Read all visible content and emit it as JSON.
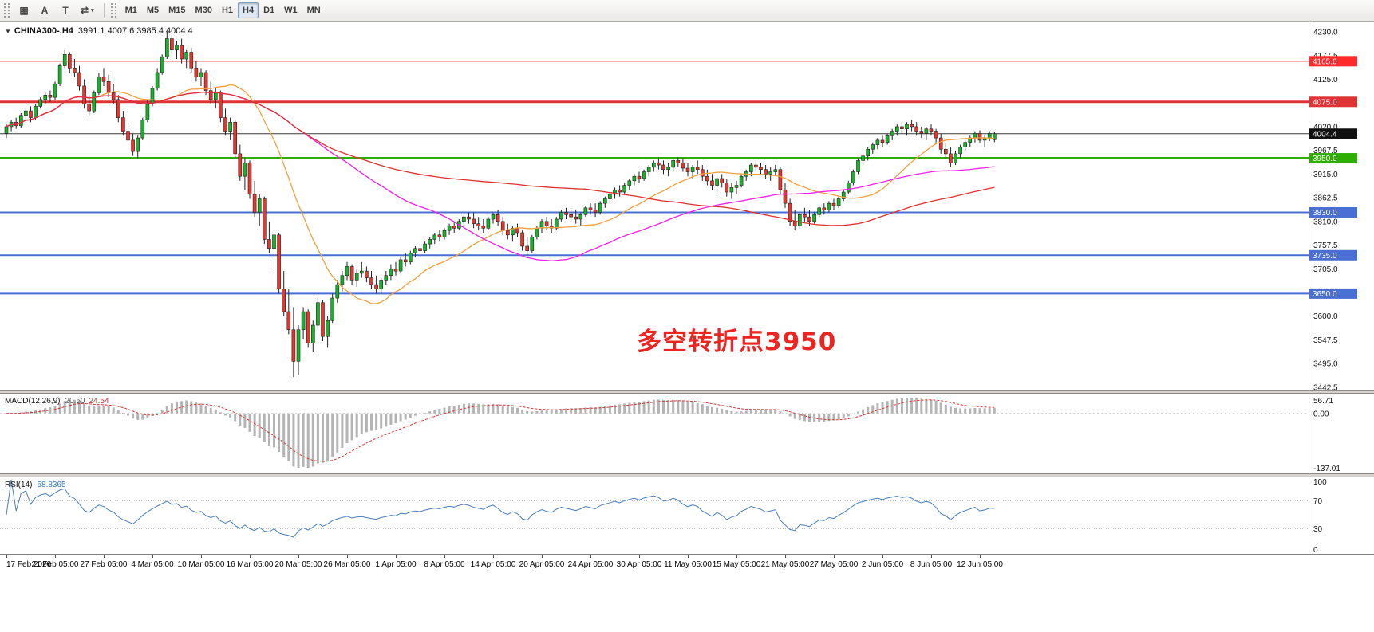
{
  "toolbar": {
    "icons": [
      {
        "name": "charts-grid-icon",
        "glyph": "▦"
      },
      {
        "name": "cursor-tool-icon",
        "glyph": "A"
      },
      {
        "name": "text-tool-icon",
        "glyph": "T"
      },
      {
        "name": "chart-shift-icon",
        "glyph": "⇄",
        "caret": true
      }
    ],
    "timeframes": [
      "M1",
      "M5",
      "M15",
      "M30",
      "H1",
      "H4",
      "D1",
      "W1",
      "MN"
    ],
    "active_timeframe": "H4"
  },
  "chart": {
    "collapse_icon": "▼",
    "title_symbol": "CHINA300-,H4",
    "title_ohlc": "3991.1 4007.6 3985.4 4004.4",
    "annotation": {
      "text": "多空转折点3950",
      "color": "#ee2420"
    }
  },
  "chart_data": {
    "type": "candlestick",
    "symbol": "CHINA300-",
    "timeframe": "H4",
    "colors": {
      "up": "#17b32a",
      "down": "#e8352e",
      "wick": "#222222",
      "current_price_line": "#3c3c3c"
    },
    "y_axis": {
      "min": 3442.5,
      "max": 4230.0,
      "step": 52.5
    },
    "levels": [
      {
        "price": 4165.0,
        "label": "4165.0",
        "color": "#ff2a2a",
        "width": 1
      },
      {
        "price": 4075.0,
        "label": "4075.0",
        "color": "#e03434",
        "width": 3
      },
      {
        "price": 3950.0,
        "label": "3950.0",
        "color": "#2eae00",
        "width": 3
      },
      {
        "price": 3830.0,
        "label": "3830.0",
        "color": "#4a6fd4",
        "width": 2
      },
      {
        "price": 3735.0,
        "label": "3735.0",
        "color": "#4a6fd4",
        "width": 2
      },
      {
        "price": 3650.0,
        "label": "3650.0",
        "color": "#4a6fd4",
        "width": 2
      }
    ],
    "current_price": {
      "value": 4004.4,
      "label": "4004.4",
      "badge_color": "#101010"
    },
    "moving_averages": [
      {
        "period": 20,
        "color": "#f2a13c"
      },
      {
        "period": 60,
        "color": "#f020e8"
      },
      {
        "period": 120,
        "color": "#e03030"
      }
    ],
    "indicators": {
      "macd": {
        "label": "MACD(12,26,9)",
        "value_hist": "20.50",
        "value_signal": "24.54",
        "fast": 12,
        "slow": 26,
        "signal": 9,
        "scale_labels": [
          "56.71",
          "0.00",
          "-137.01"
        ]
      },
      "rsi": {
        "label": "RSI(14)",
        "value": "58.8365",
        "period": 14,
        "levels": [
          70,
          30
        ],
        "scale_labels": [
          "100",
          "70",
          "30",
          "0"
        ],
        "scale_values": [
          100,
          70,
          30,
          0
        ]
      }
    },
    "x_labels": [
      "17 Feb 2020",
      "21 Feb 05:00",
      "27 Feb 05:00",
      "4 Mar 05:00",
      "10 Mar 05:00",
      "16 Mar 05:00",
      "20 Mar 05:00",
      "26 Mar 05:00",
      "1 Apr 05:00",
      "8 Apr 05:00",
      "14 Apr 05:00",
      "20 Apr 05:00",
      "24 Apr 05:00",
      "30 Apr 05:00",
      "11 May 05:00",
      "15 May 05:00",
      "21 May 05:00",
      "27 May 05:00",
      "2 Jun 05:00",
      "8 Jun 05:00",
      "12 Jun 05:00"
    ],
    "candles": [
      [
        4005,
        4025,
        3995,
        4020
      ],
      [
        4020,
        4035,
        4010,
        4030
      ],
      [
        4030,
        4040,
        4015,
        4022
      ],
      [
        4022,
        4050,
        4018,
        4045
      ],
      [
        4045,
        4060,
        4035,
        4055
      ],
      [
        4055,
        4065,
        4030,
        4040
      ],
      [
        4040,
        4070,
        4035,
        4065
      ],
      [
        4065,
        4085,
        4060,
        4080
      ],
      [
        4080,
        4095,
        4070,
        4090
      ],
      [
        4090,
        4100,
        4075,
        4085
      ],
      [
        4085,
        4120,
        4080,
        4115
      ],
      [
        4115,
        4160,
        4110,
        4155
      ],
      [
        4155,
        4190,
        4150,
        4180
      ],
      [
        4180,
        4185,
        4140,
        4150
      ],
      [
        4150,
        4170,
        4130,
        4140
      ],
      [
        4140,
        4155,
        4100,
        4110
      ],
      [
        4110,
        4125,
        4060,
        4070
      ],
      [
        4070,
        4090,
        4045,
        4055
      ],
      [
        4055,
        4100,
        4050,
        4095
      ],
      [
        4095,
        4140,
        4090,
        4130
      ],
      [
        4130,
        4150,
        4110,
        4120
      ],
      [
        4120,
        4135,
        4085,
        4095
      ],
      [
        4095,
        4115,
        4070,
        4080
      ],
      [
        4080,
        4090,
        4030,
        4040
      ],
      [
        4040,
        4055,
        4000,
        4010
      ],
      [
        4010,
        4025,
        3980,
        3990
      ],
      [
        3990,
        4005,
        3955,
        3965
      ],
      [
        3965,
        4000,
        3950,
        3995
      ],
      [
        3995,
        4040,
        3990,
        4035
      ],
      [
        4035,
        4080,
        4030,
        4070
      ],
      [
        4070,
        4110,
        4065,
        4105
      ],
      [
        4105,
        4150,
        4100,
        4140
      ],
      [
        4140,
        4180,
        4135,
        4175
      ],
      [
        4175,
        4230,
        4170,
        4215
      ],
      [
        4215,
        4225,
        4180,
        4190
      ],
      [
        4190,
        4210,
        4170,
        4200
      ],
      [
        4200,
        4215,
        4160,
        4170
      ],
      [
        4170,
        4190,
        4150,
        4185
      ],
      [
        4185,
        4195,
        4140,
        4150
      ],
      [
        4150,
        4165,
        4120,
        4130
      ],
      [
        4130,
        4150,
        4110,
        4140
      ],
      [
        4140,
        4145,
        4090,
        4100
      ],
      [
        4100,
        4120,
        4070,
        4080
      ],
      [
        4080,
        4105,
        4060,
        4095
      ],
      [
        4095,
        4100,
        4030,
        4040
      ],
      [
        4040,
        4060,
        4000,
        4010
      ],
      [
        4010,
        4040,
        3990,
        4030
      ],
      [
        4030,
        4035,
        3950,
        3960
      ],
      [
        3960,
        3980,
        3900,
        3910
      ],
      [
        3910,
        3950,
        3880,
        3940
      ],
      [
        3940,
        3945,
        3860,
        3870
      ],
      [
        3870,
        3900,
        3820,
        3830
      ],
      [
        3830,
        3870,
        3800,
        3860
      ],
      [
        3860,
        3865,
        3760,
        3770
      ],
      [
        3770,
        3810,
        3740,
        3750
      ],
      [
        3750,
        3790,
        3700,
        3780
      ],
      [
        3780,
        3785,
        3650,
        3660
      ],
      [
        3660,
        3700,
        3600,
        3610
      ],
      [
        3610,
        3660,
        3560,
        3570
      ],
      [
        3570,
        3620,
        3465,
        3500
      ],
      [
        3500,
        3580,
        3470,
        3570
      ],
      [
        3570,
        3620,
        3550,
        3610
      ],
      [
        3610,
        3615,
        3530,
        3540
      ],
      [
        3540,
        3590,
        3520,
        3580
      ],
      [
        3580,
        3640,
        3570,
        3630
      ],
      [
        3630,
        3635,
        3545,
        3555
      ],
      [
        3555,
        3600,
        3530,
        3590
      ],
      [
        3590,
        3650,
        3585,
        3640
      ],
      [
        3640,
        3680,
        3630,
        3670
      ],
      [
        3670,
        3700,
        3655,
        3690
      ],
      [
        3690,
        3720,
        3680,
        3710
      ],
      [
        3710,
        3715,
        3670,
        3680
      ],
      [
        3680,
        3705,
        3665,
        3695
      ],
      [
        3695,
        3720,
        3685,
        3700
      ],
      [
        3700,
        3710,
        3675,
        3685
      ],
      [
        3685,
        3700,
        3660,
        3670
      ],
      [
        3670,
        3690,
        3650,
        3660
      ],
      [
        3660,
        3685,
        3648,
        3680
      ],
      [
        3680,
        3700,
        3670,
        3690
      ],
      [
        3690,
        3715,
        3680,
        3705
      ],
      [
        3705,
        3720,
        3690,
        3700
      ],
      [
        3700,
        3730,
        3695,
        3725
      ],
      [
        3725,
        3740,
        3710,
        3720
      ],
      [
        3720,
        3745,
        3715,
        3740
      ],
      [
        3740,
        3755,
        3730,
        3750
      ],
      [
        3750,
        3760,
        3735,
        3745
      ],
      [
        3745,
        3765,
        3740,
        3760
      ],
      [
        3760,
        3775,
        3750,
        3770
      ],
      [
        3770,
        3785,
        3760,
        3780
      ],
      [
        3780,
        3790,
        3765,
        3775
      ],
      [
        3775,
        3795,
        3770,
        3790
      ],
      [
        3790,
        3805,
        3780,
        3800
      ],
      [
        3800,
        3810,
        3785,
        3795
      ],
      [
        3795,
        3815,
        3790,
        3810
      ],
      [
        3810,
        3825,
        3800,
        3820
      ],
      [
        3820,
        3830,
        3805,
        3815
      ],
      [
        3815,
        3830,
        3795,
        3805
      ],
      [
        3805,
        3820,
        3790,
        3800
      ],
      [
        3800,
        3815,
        3785,
        3795
      ],
      [
        3795,
        3820,
        3790,
        3815
      ],
      [
        3815,
        3830,
        3805,
        3825
      ],
      [
        3825,
        3835,
        3800,
        3810
      ],
      [
        3810,
        3820,
        3780,
        3790
      ],
      [
        3790,
        3805,
        3770,
        3780
      ],
      [
        3780,
        3800,
        3765,
        3795
      ],
      [
        3795,
        3805,
        3775,
        3785
      ],
      [
        3785,
        3790,
        3745,
        3755
      ],
      [
        3755,
        3775,
        3735,
        3745
      ],
      [
        3745,
        3780,
        3740,
        3775
      ],
      [
        3775,
        3800,
        3770,
        3795
      ],
      [
        3795,
        3815,
        3785,
        3810
      ],
      [
        3810,
        3820,
        3790,
        3800
      ],
      [
        3800,
        3815,
        3785,
        3795
      ],
      [
        3795,
        3820,
        3790,
        3815
      ],
      [
        3815,
        3835,
        3810,
        3830
      ],
      [
        3830,
        3840,
        3815,
        3825
      ],
      [
        3825,
        3840,
        3810,
        3820
      ],
      [
        3820,
        3835,
        3805,
        3815
      ],
      [
        3815,
        3830,
        3800,
        3825
      ],
      [
        3825,
        3845,
        3820,
        3840
      ],
      [
        3840,
        3850,
        3825,
        3835
      ],
      [
        3835,
        3850,
        3820,
        3830
      ],
      [
        3830,
        3855,
        3825,
        3850
      ],
      [
        3850,
        3865,
        3840,
        3860
      ],
      [
        3860,
        3875,
        3850,
        3870
      ],
      [
        3870,
        3885,
        3860,
        3880
      ],
      [
        3880,
        3890,
        3865,
        3875
      ],
      [
        3875,
        3895,
        3870,
        3890
      ],
      [
        3890,
        3905,
        3880,
        3900
      ],
      [
        3900,
        3915,
        3890,
        3910
      ],
      [
        3910,
        3920,
        3895,
        3905
      ],
      [
        3905,
        3925,
        3900,
        3920
      ],
      [
        3920,
        3935,
        3910,
        3930
      ],
      [
        3930,
        3945,
        3920,
        3940
      ],
      [
        3940,
        3950,
        3925,
        3935
      ],
      [
        3935,
        3945,
        3915,
        3925
      ],
      [
        3925,
        3940,
        3910,
        3930
      ],
      [
        3930,
        3948,
        3920,
        3945
      ],
      [
        3945,
        3952,
        3930,
        3940
      ],
      [
        3940,
        3950,
        3920,
        3928
      ],
      [
        3928,
        3940,
        3910,
        3920
      ],
      [
        3920,
        3935,
        3905,
        3930
      ],
      [
        3930,
        3945,
        3915,
        3925
      ],
      [
        3925,
        3935,
        3900,
        3910
      ],
      [
        3910,
        3925,
        3890,
        3900
      ],
      [
        3900,
        3915,
        3880,
        3890
      ],
      [
        3890,
        3910,
        3875,
        3905
      ],
      [
        3905,
        3915,
        3885,
        3895
      ],
      [
        3895,
        3905,
        3865,
        3875
      ],
      [
        3875,
        3895,
        3860,
        3885
      ],
      [
        3885,
        3900,
        3870,
        3890
      ],
      [
        3890,
        3915,
        3885,
        3910
      ],
      [
        3910,
        3925,
        3900,
        3920
      ],
      [
        3920,
        3940,
        3910,
        3935
      ],
      [
        3935,
        3945,
        3920,
        3930
      ],
      [
        3930,
        3940,
        3915,
        3925
      ],
      [
        3925,
        3935,
        3905,
        3915
      ],
      [
        3915,
        3930,
        3900,
        3920
      ],
      [
        3920,
        3935,
        3910,
        3925
      ],
      [
        3925,
        3930,
        3870,
        3880
      ],
      [
        3880,
        3895,
        3840,
        3850
      ],
      [
        3850,
        3860,
        3800,
        3810
      ],
      [
        3810,
        3835,
        3790,
        3800
      ],
      [
        3800,
        3830,
        3795,
        3825
      ],
      [
        3825,
        3840,
        3810,
        3820
      ],
      [
        3820,
        3835,
        3800,
        3810
      ],
      [
        3810,
        3830,
        3805,
        3825
      ],
      [
        3825,
        3845,
        3820,
        3840
      ],
      [
        3840,
        3850,
        3825,
        3835
      ],
      [
        3835,
        3855,
        3830,
        3850
      ],
      [
        3850,
        3860,
        3835,
        3845
      ],
      [
        3845,
        3865,
        3840,
        3860
      ],
      [
        3860,
        3880,
        3855,
        3875
      ],
      [
        3875,
        3900,
        3870,
        3895
      ],
      [
        3895,
        3925,
        3890,
        3920
      ],
      [
        3920,
        3950,
        3915,
        3945
      ],
      [
        3945,
        3960,
        3935,
        3955
      ],
      [
        3955,
        3975,
        3945,
        3970
      ],
      [
        3970,
        3985,
        3960,
        3980
      ],
      [
        3980,
        3995,
        3970,
        3990
      ],
      [
        3990,
        4000,
        3975,
        3985
      ],
      [
        3985,
        4005,
        3980,
        4000
      ],
      [
        4000,
        4015,
        3990,
        4010
      ],
      [
        4010,
        4025,
        4000,
        4020
      ],
      [
        4020,
        4030,
        4005,
        4015
      ],
      [
        4015,
        4030,
        4000,
        4025
      ],
      [
        4025,
        4035,
        4010,
        4020
      ],
      [
        4020,
        4030,
        4000,
        4010
      ],
      [
        4010,
        4020,
        3995,
        4005
      ],
      [
        4005,
        4020,
        3990,
        4015
      ],
      [
        4015,
        4025,
        4000,
        4010
      ],
      [
        4010,
        4015,
        3985,
        3995
      ],
      [
        3995,
        4005,
        3960,
        3970
      ],
      [
        3970,
        3985,
        3950,
        3960
      ],
      [
        3960,
        3975,
        3930,
        3940
      ],
      [
        3940,
        3965,
        3935,
        3960
      ],
      [
        3960,
        3980,
        3950,
        3975
      ],
      [
        3975,
        3990,
        3965,
        3985
      ],
      [
        3985,
        4000,
        3975,
        3995
      ],
      [
        3995,
        4010,
        3985,
        4005
      ],
      [
        4005,
        4012,
        3985,
        3990
      ],
      [
        3990,
        4000,
        3975,
        3995
      ],
      [
        3995,
        4010,
        3988,
        4005
      ],
      [
        3991.1,
        4007.6,
        3985.4,
        4004.4
      ]
    ]
  }
}
